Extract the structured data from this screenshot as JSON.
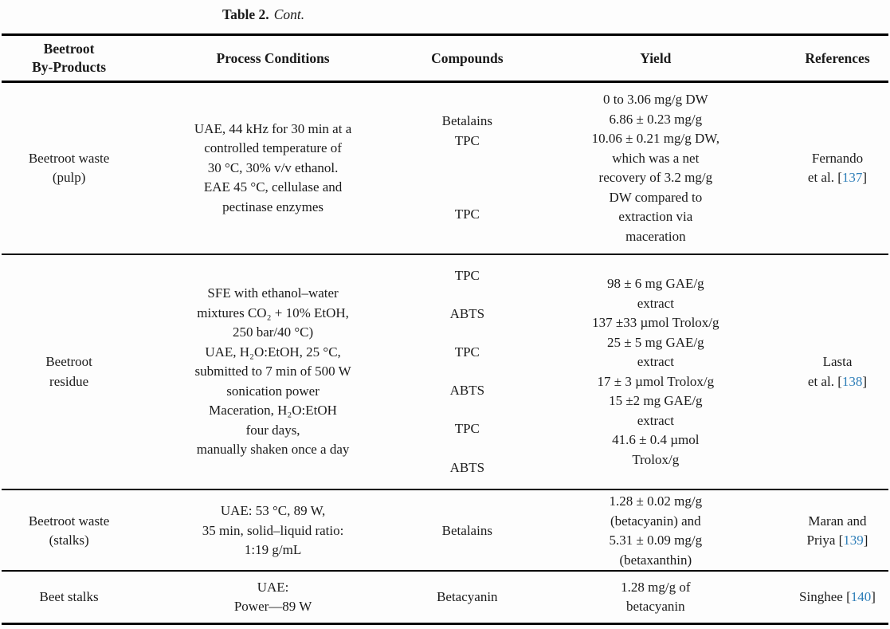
{
  "caption": {
    "label": "Table 2.",
    "cont": "Cont."
  },
  "colors": {
    "link": "#2e7eb8",
    "text": "#1b1b1b",
    "rule": "#000000"
  },
  "punct": {
    "open": "[",
    "close": "]"
  },
  "headers": [
    {
      "lines": [
        "Beetroot",
        "By-Products"
      ]
    },
    {
      "lines": [
        "Process Conditions"
      ]
    },
    {
      "lines": [
        "Compounds"
      ]
    },
    {
      "lines": [
        "Yield"
      ]
    },
    {
      "lines": [
        "References"
      ]
    }
  ],
  "rows": [
    {
      "byproduct_lines": [
        "Beetroot waste",
        "(pulp)"
      ],
      "process_lines": [
        "UAE, 44 kHz for 30 min at a",
        "controlled temperature of",
        "30 °C, 30% v/v ethanol.",
        "EAE 45 °C, cellulase and",
        "pectinase enzymes"
      ],
      "compound_groups": [
        [
          "Betalains",
          "TPC"
        ],
        [
          "TPC"
        ]
      ],
      "yield_lines": [
        "0 to 3.06 mg/g DW",
        "6.86 ± 0.23 mg/g",
        "10.06 ± 0.21 mg/g DW,",
        "which was a net",
        "recovery of 3.2 mg/g",
        "DW compared to",
        "extraction via",
        "maceration"
      ],
      "reference": {
        "line1": "Fernando",
        "line2_prefix": "et al. ",
        "number": "137"
      }
    },
    {
      "byproduct_lines": [
        "Beetroot",
        "residue"
      ],
      "process_lines": [
        "SFE with ethanol–water",
        "mixtures CO₂ + 10% EtOH,",
        "250 bar/40 °C)",
        "UAE, H₂O:EtOH, 25 °C,",
        "submitted to 7 min of 500 W",
        "sonication power",
        "Maceration, H₂O:EtOH",
        "four days,",
        "manually shaken once a day"
      ],
      "compound_groups": [
        [
          "TPC"
        ],
        [
          "ABTS"
        ],
        [
          "TPC"
        ],
        [
          "ABTS"
        ],
        [
          "TPC"
        ],
        [
          "ABTS"
        ]
      ],
      "yield_lines": [
        "98 ± 6 mg GAE/g",
        "extract",
        "137 ±33 µmol Trolox/g",
        "25 ± 5 mg GAE/g",
        "extract",
        "17 ± 3 µmol Trolox/g",
        "15 ±2 mg GAE/g",
        "extract",
        "41.6 ± 0.4 µmol",
        "Trolox/g"
      ],
      "reference": {
        "line1": "Lasta",
        "line2_prefix": "et al. ",
        "number": "138"
      }
    },
    {
      "byproduct_lines": [
        "Beetroot waste",
        "(stalks)"
      ],
      "process_lines": [
        "UAE: 53 °C, 89 W,",
        "35 min, solid–liquid ratio:",
        "1:19 g/mL"
      ],
      "compound_groups": [
        [
          "Betalains"
        ]
      ],
      "yield_lines": [
        "1.28 ± 0.02 mg/g",
        "(betacyanin) and",
        "5.31 ± 0.09 mg/g",
        "(betaxanthin)"
      ],
      "reference": {
        "line1": "Maran and",
        "line2_prefix": "Priya ",
        "number": "139"
      }
    },
    {
      "byproduct_lines": [
        "Beet stalks"
      ],
      "process_lines": [
        "UAE:",
        "Power—89 W"
      ],
      "compound_groups": [
        [
          "Betacyanin"
        ]
      ],
      "yield_lines": [
        "1.28 mg/g of",
        "betacyanin"
      ],
      "reference": {
        "line1": "",
        "line2_prefix": "Singhee ",
        "number": "140"
      }
    }
  ]
}
